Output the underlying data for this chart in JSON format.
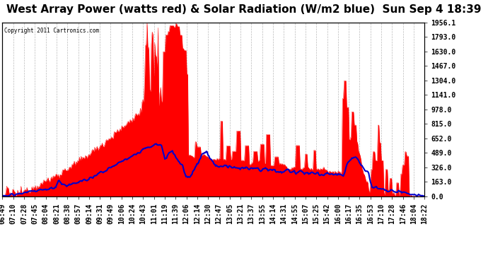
{
  "title": "West Array Power (watts red) & Solar Radiation (W/m2 blue)  Sun Sep 4 18:39",
  "copyright": "Copyright 2011 Cartronics.com",
  "yticks": [
    0.0,
    163.0,
    326.0,
    489.0,
    652.0,
    815.0,
    978.0,
    1141.0,
    1304.0,
    1467.0,
    1630.0,
    1793.0,
    1956.1
  ],
  "ylim": [
    0,
    1956.1
  ],
  "xtick_labels": [
    "06:49",
    "07:10",
    "07:28",
    "07:45",
    "08:04",
    "08:21",
    "08:38",
    "08:57",
    "09:14",
    "09:31",
    "09:49",
    "10:06",
    "10:24",
    "10:43",
    "11:01",
    "11:19",
    "11:39",
    "12:06",
    "12:14",
    "12:30",
    "12:47",
    "13:05",
    "13:21",
    "13:37",
    "13:55",
    "14:14",
    "14:31",
    "14:55",
    "15:07",
    "15:25",
    "15:42",
    "16:00",
    "16:17",
    "16:35",
    "16:53",
    "17:10",
    "17:28",
    "17:46",
    "18:04",
    "18:22"
  ],
  "bg_color": "#ffffff",
  "plot_bg_color": "#ffffff",
  "grid_color": "#aaaaaa",
  "red_color": "#ff0000",
  "blue_color": "#0000cc",
  "title_fontsize": 11,
  "tick_fontsize": 7,
  "n_points": 500
}
